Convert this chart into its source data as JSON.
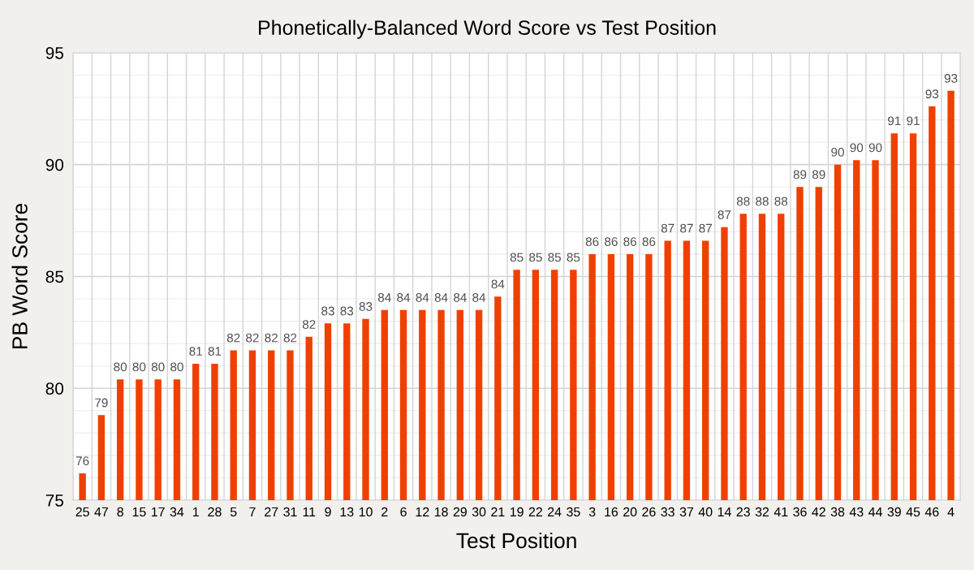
{
  "chart_data": {
    "type": "bar",
    "title": "Phonetically-Balanced Word Score vs Test Position",
    "xlabel": "Test Position",
    "ylabel": "PB Word Score",
    "categories": [
      "25",
      "47",
      "8",
      "15",
      "17",
      "34",
      "1",
      "28",
      "5",
      "7",
      "27",
      "31",
      "11",
      "9",
      "13",
      "10",
      "2",
      "6",
      "12",
      "18",
      "29",
      "30",
      "21",
      "19",
      "22",
      "24",
      "35",
      "3",
      "16",
      "20",
      "26",
      "33",
      "37",
      "40",
      "14",
      "23",
      "32",
      "41",
      "36",
      "42",
      "38",
      "43",
      "44",
      "39",
      "45",
      "46",
      "4"
    ],
    "values": [
      76.2,
      78.8,
      80.4,
      80.4,
      80.4,
      80.4,
      81.1,
      81.1,
      81.7,
      81.7,
      81.7,
      81.7,
      82.3,
      82.9,
      82.9,
      83.1,
      83.5,
      83.5,
      83.5,
      83.5,
      83.5,
      83.5,
      84.1,
      85.3,
      85.3,
      85.3,
      85.3,
      86.0,
      86.0,
      86.0,
      86.0,
      86.6,
      86.6,
      86.6,
      87.2,
      87.8,
      87.8,
      87.8,
      89.0,
      89.0,
      90.0,
      90.2,
      90.2,
      91.4,
      91.4,
      92.6,
      93.3
    ],
    "value_labels": [
      "76",
      "79",
      "80",
      "80",
      "80",
      "80",
      "81",
      "81",
      "82",
      "82",
      "82",
      "82",
      "82",
      "83",
      "83",
      "83",
      "84",
      "84",
      "84",
      "84",
      "84",
      "84",
      "84",
      "85",
      "85",
      "85",
      "85",
      "86",
      "86",
      "86",
      "86",
      "87",
      "87",
      "87",
      "87",
      "88",
      "88",
      "88",
      "89",
      "89",
      "90",
      "90",
      "90",
      "91",
      "91",
      "93",
      "93"
    ],
    "color": "#f04000",
    "ylim": [
      75,
      95
    ],
    "yticks": [
      75,
      {
        "value": 76,
        "label": null
      },
      {
        "value": 77,
        "label": null
      },
      {
        "value": 78,
        "label": null
      },
      {
        "value": 79,
        "label": null
      },
      80,
      {
        "value": 81,
        "label": null
      },
      {
        "value": 82,
        "label": null
      },
      {
        "value": 83,
        "label": null
      },
      {
        "value": 84,
        "label": null
      },
      85,
      {
        "value": 86,
        "label": null
      },
      {
        "value": 87,
        "label": null
      },
      {
        "value": 88,
        "label": null
      },
      {
        "value": 89,
        "label": null
      },
      90,
      {
        "value": 91,
        "label": null
      },
      {
        "value": 92,
        "label": null
      },
      {
        "value": 93,
        "label": null
      },
      {
        "value": 94,
        "label": null
      },
      95
    ],
    "grid": true,
    "legend": false
  }
}
